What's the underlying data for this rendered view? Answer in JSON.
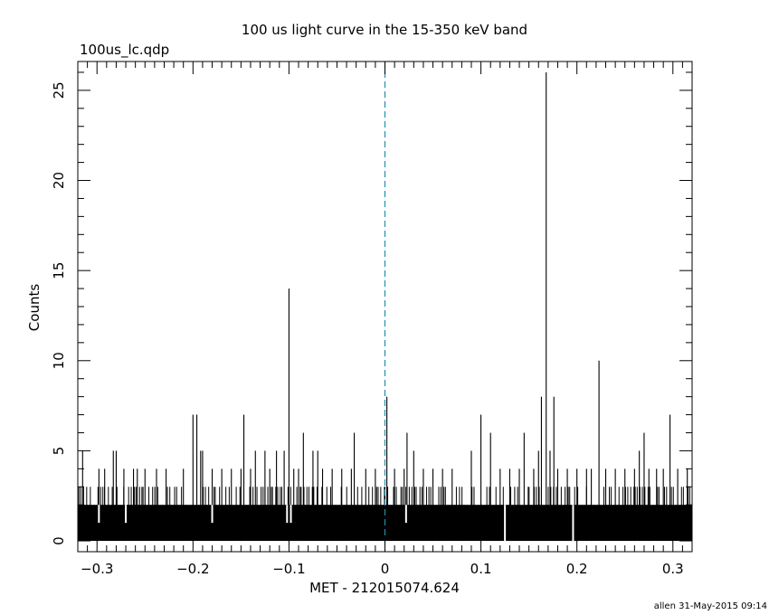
{
  "chart_data": {
    "type": "bar",
    "title": "100 us light curve in the 15-350 keV band",
    "subtitle": "100us_lc.qdp",
    "xlabel": "MET - 212015074.624",
    "ylabel": "Counts",
    "footer": "allen 31-May-2015 09:14",
    "xlim": [
      -0.32,
      0.32
    ],
    "ylim": [
      -0.6,
      26.6
    ],
    "x_ticks": [
      -0.3,
      -0.2,
      -0.1,
      0,
      0.1,
      0.2,
      0.3
    ],
    "x_tick_labels": [
      "−0.3",
      "−0.2",
      "−0.1",
      "0",
      "0.1",
      "0.2",
      "0.3"
    ],
    "y_ticks": [
      0,
      5,
      10,
      15,
      20,
      25
    ],
    "y_tick_labels": [
      "0",
      "5",
      "10",
      "15",
      "20",
      "25"
    ],
    "bin_width": 0.0001,
    "baseline_level": 2,
    "trigger_time": 0,
    "trigger_line_color": "#1f8fb0",
    "grid": false,
    "peaks": [
      {
        "x": -0.315,
        "y": 5
      },
      {
        "x": -0.298,
        "y": 4
      },
      {
        "x": -0.292,
        "y": 4
      },
      {
        "x": -0.283,
        "y": 5
      },
      {
        "x": -0.28,
        "y": 5
      },
      {
        "x": -0.272,
        "y": 4
      },
      {
        "x": -0.262,
        "y": 4
      },
      {
        "x": -0.258,
        "y": 4
      },
      {
        "x": -0.25,
        "y": 4
      },
      {
        "x": -0.238,
        "y": 4
      },
      {
        "x": -0.228,
        "y": 4
      },
      {
        "x": -0.21,
        "y": 4
      },
      {
        "x": -0.2,
        "y": 7
      },
      {
        "x": -0.196,
        "y": 7
      },
      {
        "x": -0.192,
        "y": 5
      },
      {
        "x": -0.19,
        "y": 5
      },
      {
        "x": -0.18,
        "y": 4
      },
      {
        "x": -0.17,
        "y": 4
      },
      {
        "x": -0.16,
        "y": 4
      },
      {
        "x": -0.15,
        "y": 4
      },
      {
        "x": -0.147,
        "y": 7
      },
      {
        "x": -0.14,
        "y": 4
      },
      {
        "x": -0.135,
        "y": 5
      },
      {
        "x": -0.125,
        "y": 5
      },
      {
        "x": -0.12,
        "y": 4
      },
      {
        "x": -0.113,
        "y": 5
      },
      {
        "x": -0.105,
        "y": 5
      },
      {
        "x": -0.1,
        "y": 14
      },
      {
        "x": -0.095,
        "y": 4
      },
      {
        "x": -0.09,
        "y": 4
      },
      {
        "x": -0.085,
        "y": 6
      },
      {
        "x": -0.075,
        "y": 5
      },
      {
        "x": -0.07,
        "y": 5
      },
      {
        "x": -0.065,
        "y": 4
      },
      {
        "x": -0.055,
        "y": 4
      },
      {
        "x": -0.045,
        "y": 4
      },
      {
        "x": -0.035,
        "y": 4
      },
      {
        "x": -0.032,
        "y": 6
      },
      {
        "x": -0.02,
        "y": 4
      },
      {
        "x": -0.01,
        "y": 4
      },
      {
        "x": 0.002,
        "y": 8
      },
      {
        "x": 0.01,
        "y": 4
      },
      {
        "x": 0.02,
        "y": 4
      },
      {
        "x": 0.023,
        "y": 6
      },
      {
        "x": 0.03,
        "y": 5
      },
      {
        "x": 0.04,
        "y": 4
      },
      {
        "x": 0.05,
        "y": 4
      },
      {
        "x": 0.06,
        "y": 4
      },
      {
        "x": 0.07,
        "y": 4
      },
      {
        "x": 0.09,
        "y": 5
      },
      {
        "x": 0.1,
        "y": 7
      },
      {
        "x": 0.11,
        "y": 6
      },
      {
        "x": 0.12,
        "y": 4
      },
      {
        "x": 0.13,
        "y": 4
      },
      {
        "x": 0.14,
        "y": 4
      },
      {
        "x": 0.145,
        "y": 6
      },
      {
        "x": 0.155,
        "y": 4
      },
      {
        "x": 0.16,
        "y": 5
      },
      {
        "x": 0.163,
        "y": 8
      },
      {
        "x": 0.168,
        "y": 26
      },
      {
        "x": 0.172,
        "y": 5
      },
      {
        "x": 0.176,
        "y": 8
      },
      {
        "x": 0.18,
        "y": 4
      },
      {
        "x": 0.19,
        "y": 4
      },
      {
        "x": 0.2,
        "y": 4
      },
      {
        "x": 0.21,
        "y": 4
      },
      {
        "x": 0.215,
        "y": 4
      },
      {
        "x": 0.223,
        "y": 10
      },
      {
        "x": 0.23,
        "y": 4
      },
      {
        "x": 0.24,
        "y": 4
      },
      {
        "x": 0.25,
        "y": 4
      },
      {
        "x": 0.26,
        "y": 4
      },
      {
        "x": 0.265,
        "y": 5
      },
      {
        "x": 0.27,
        "y": 6
      },
      {
        "x": 0.275,
        "y": 4
      },
      {
        "x": 0.283,
        "y": 4
      },
      {
        "x": 0.29,
        "y": 4
      },
      {
        "x": 0.297,
        "y": 7
      },
      {
        "x": 0.305,
        "y": 4
      },
      {
        "x": 0.315,
        "y": 4
      }
    ],
    "gaps": [
      {
        "x": -0.298,
        "y": 1
      },
      {
        "x": -0.27,
        "y": 1
      },
      {
        "x": -0.18,
        "y": 1
      },
      {
        "x": -0.102,
        "y": 1
      },
      {
        "x": -0.098,
        "y": 1
      },
      {
        "x": 0.022,
        "y": 1
      },
      {
        "x": 0.125,
        "y": 0
      },
      {
        "x": 0.196,
        "y": 0
      }
    ]
  }
}
